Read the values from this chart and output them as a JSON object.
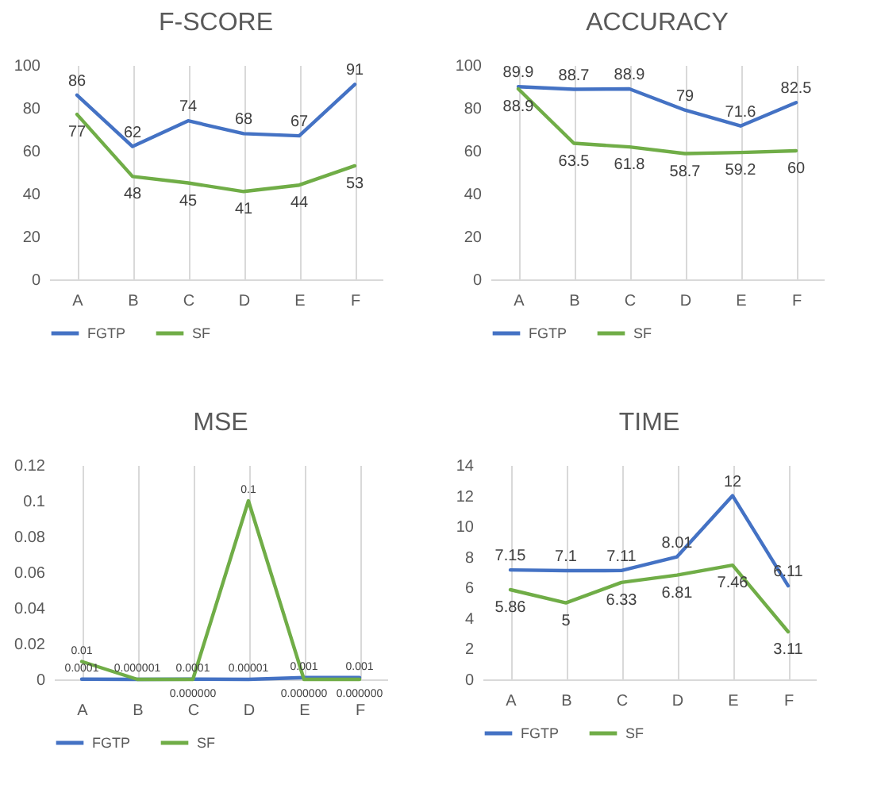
{
  "chart_data": [
    {
      "type": "line",
      "title": "F-SCORE",
      "categories": [
        "A",
        "B",
        "C",
        "D",
        "E",
        "F"
      ],
      "ylim": [
        0,
        100
      ],
      "yticks": [
        0,
        20,
        40,
        60,
        80,
        100
      ],
      "grid": "x",
      "legend": "bottom",
      "data_labels": true,
      "series": [
        {
          "name": "FGTP",
          "color": "#4472c4",
          "values": [
            86,
            62,
            74,
            68,
            67,
            91
          ]
        },
        {
          "name": "SF",
          "color": "#70ad47",
          "values": [
            77,
            48,
            45,
            41,
            44,
            53
          ]
        }
      ]
    },
    {
      "type": "line",
      "title": "ACCURACY",
      "categories": [
        "A",
        "B",
        "C",
        "D",
        "E",
        "F"
      ],
      "ylim": [
        0,
        100
      ],
      "yticks": [
        0,
        20,
        40,
        60,
        80,
        100
      ],
      "grid": "x",
      "legend": "bottom",
      "data_labels": true,
      "series": [
        {
          "name": "FGTP",
          "color": "#4472c4",
          "values": [
            89.9,
            88.7,
            88.9,
            79,
            71.6,
            82.5
          ]
        },
        {
          "name": "SF",
          "color": "#70ad47",
          "values": [
            88.9,
            63.5,
            61.8,
            58.7,
            59.2,
            60
          ]
        }
      ]
    },
    {
      "type": "line",
      "title": "MSE",
      "categories": [
        "A",
        "B",
        "C",
        "D",
        "E",
        "F"
      ],
      "ylim": [
        0,
        0.12
      ],
      "yticks": [
        0,
        0.02,
        0.04,
        0.06,
        0.08,
        0.1,
        0.12
      ],
      "grid": "x",
      "legend": "bottom",
      "series": [
        {
          "name": "FGTP",
          "color": "#4472c4",
          "values": [
            0.0001,
            1e-06,
            0.0001,
            1e-05,
            0.001,
            0.001
          ],
          "value_labels": [
            "0.0001",
            "0.000001",
            "0.0001",
            "0.00001",
            "0.001",
            "0.001"
          ]
        },
        {
          "name": "SF",
          "color": "#70ad47",
          "values": [
            0.01,
            0,
            0,
            0.1,
            0,
            0
          ],
          "value_labels": [
            "0.01",
            null,
            "0.000000",
            "0.1",
            "0.000000",
            "0.000000"
          ]
        }
      ]
    },
    {
      "type": "line",
      "title": "TIME",
      "categories": [
        "A",
        "B",
        "C",
        "D",
        "E",
        "F"
      ],
      "ylim": [
        0,
        14
      ],
      "yticks": [
        0,
        2,
        4,
        6,
        8,
        10,
        12,
        14
      ],
      "grid": "x",
      "legend": "bottom",
      "data_labels": true,
      "series": [
        {
          "name": "FGTP",
          "color": "#4472c4",
          "values": [
            7.15,
            7.1,
            7.11,
            8.01,
            12,
            6.11
          ]
        },
        {
          "name": "SF",
          "color": "#70ad47",
          "values": [
            5.86,
            5,
            6.33,
            6.81,
            7.46,
            3.11
          ]
        }
      ]
    }
  ]
}
